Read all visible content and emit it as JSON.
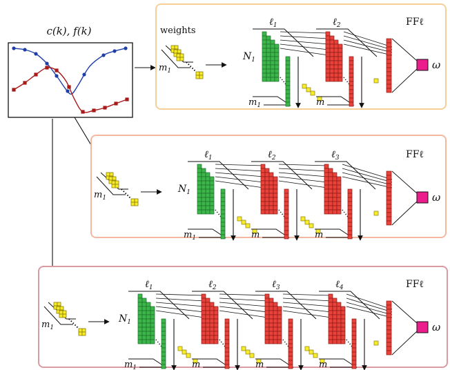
{
  "input_plot": {
    "title": "c(k), f(k)",
    "series": [
      {
        "name": "c(k)",
        "color": "#1f3fa6"
      },
      {
        "name": "f(k)",
        "color": "#a81919"
      }
    ]
  },
  "panels": [
    {
      "border_color": "#f5cf98",
      "weights_label": "weights",
      "m_label": "m",
      "m_subscript": "1",
      "N_label": "N",
      "N_subscript": "1",
      "layers": [
        {
          "symbol": "ℓ",
          "subscript": "1",
          "color": "green"
        },
        {
          "symbol": "ℓ",
          "subscript": "2",
          "color": "red"
        }
      ],
      "ff_label": "FFℓ",
      "output_label": "ω"
    },
    {
      "border_color": "#f3b7a0",
      "weights_label": "",
      "m_label": "m",
      "m_subscript": "1",
      "N_label": "N",
      "N_subscript": "1",
      "layers": [
        {
          "symbol": "ℓ",
          "subscript": "1",
          "color": "green"
        },
        {
          "symbol": "ℓ",
          "subscript": "2",
          "color": "red"
        },
        {
          "symbol": "ℓ",
          "subscript": "3",
          "color": "red"
        }
      ],
      "ff_label": "FFℓ",
      "output_label": "ω"
    },
    {
      "border_color": "#d99aa2",
      "weights_label": "",
      "m_label": "m",
      "m_subscript": "1",
      "N_label": "N",
      "N_subscript": "1",
      "layers": [
        {
          "symbol": "ℓ",
          "subscript": "1",
          "color": "green"
        },
        {
          "symbol": "ℓ",
          "subscript": "2",
          "color": "red"
        },
        {
          "symbol": "ℓ",
          "subscript": "3",
          "color": "red"
        },
        {
          "symbol": "ℓ",
          "subscript": "4",
          "color": "red"
        }
      ],
      "ff_label": "FFℓ",
      "output_label": "ω"
    }
  ],
  "colors": {
    "green_fill": "#3cb54a",
    "green_dark": "#1d6f2a",
    "red_fill": "#e8423a",
    "red_dark": "#8a1d18",
    "yellow_fill": "#f7ec2b",
    "yellow_dark": "#8c7d00",
    "magenta_fill": "#ec1c8c"
  }
}
